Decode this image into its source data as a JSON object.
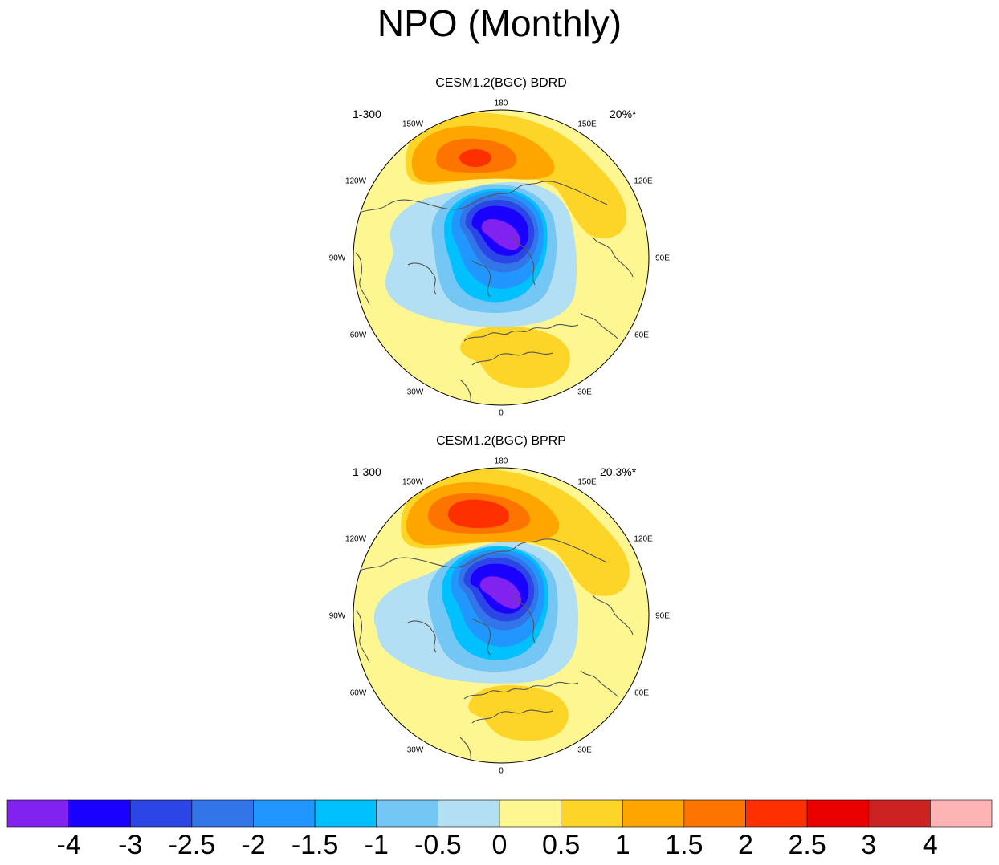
{
  "figure": {
    "title": "NPO (Monthly)"
  },
  "chart_data": {
    "type": "heatmap",
    "projection": "north-polar-stereographic",
    "title": "NPO (Monthly)",
    "longitude_labels": [
      "180",
      "150E",
      "120E",
      "90E",
      "60E",
      "30E",
      "0",
      "30W",
      "60W",
      "90W",
      "120W",
      "150W"
    ],
    "panels": [
      {
        "title": "CESM1.2(BGC) BDRD",
        "left_text": "1-300",
        "right_text": "20%*",
        "description": "Negative center over Arctic/Greenland (min about -4), positive center over North Pacific (max about 2.5), weaker positive over Europe/Mediterranean (about 1)"
      },
      {
        "title": "CESM1.2(BGC) BPRP",
        "left_text": "1-300",
        "right_text": "20.3%*",
        "description": "Negative center over Arctic/Greenland (min about -4), positive center over North Pacific (max about 2), weaker positive over Europe/Mediterranean (about 1)"
      }
    ],
    "colorbar": {
      "levels": [
        -4,
        -3,
        -2.5,
        -2,
        -1.5,
        -1,
        -0.5,
        0,
        0.5,
        1,
        1.5,
        2,
        2.5,
        3,
        4
      ],
      "labels": [
        "-4",
        "-3",
        "-2.5",
        "-2",
        "-1.5",
        "-1",
        "-0.5",
        "0",
        "0.5",
        "1",
        "1.5",
        "2",
        "2.5",
        "3",
        "4"
      ],
      "colors": [
        "#8122f0",
        "#1a00ff",
        "#2b45e6",
        "#3275e8",
        "#2196ff",
        "#00c0fe",
        "#74c7f4",
        "#b2dff4",
        "#fef791",
        "#fdd528",
        "#fea500",
        "#fe7400",
        "#fe3000",
        "#ea0000",
        "#cc2222",
        "#feb4b4"
      ]
    }
  }
}
